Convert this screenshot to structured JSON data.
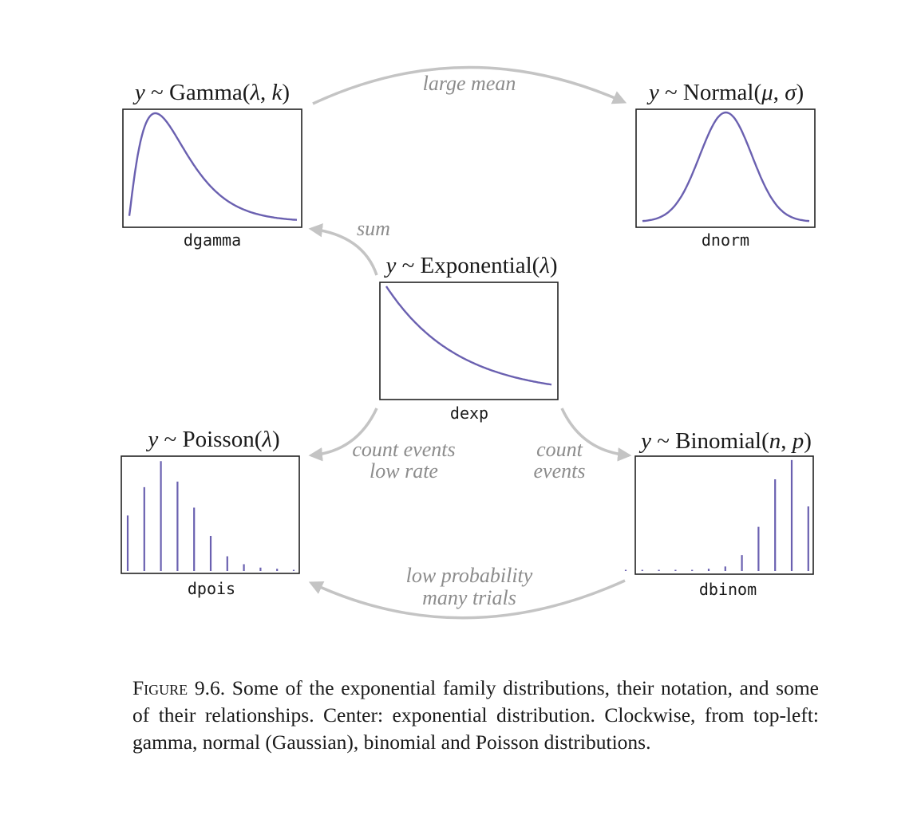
{
  "colors": {
    "curve": "#6a60b0",
    "arrow": "#c4c4c4",
    "edge_label": "#8c8c8c"
  },
  "nodes": {
    "gamma": {
      "title": [
        "y",
        " ~ Gamma(",
        "λ",
        ", ",
        "k",
        ")"
      ],
      "function": "dgamma"
    },
    "normal": {
      "title": [
        "y",
        " ~ Normal(",
        "μ",
        ", ",
        "σ",
        ")"
      ],
      "function": "dnorm"
    },
    "exponential": {
      "title": [
        "y",
        " ~ Exponential(",
        "λ",
        ")"
      ],
      "function": "dexp"
    },
    "poisson": {
      "title": [
        "y",
        " ~ Poisson(",
        "λ",
        ")"
      ],
      "function": "dpois",
      "bars": [
        0.49,
        0.74,
        0.97,
        0.79,
        0.56,
        0.31,
        0.13,
        0.06,
        0.03,
        0.02,
        0.01
      ]
    },
    "binomial": {
      "title": [
        "y",
        " ~ Binomial(",
        "n",
        ", ",
        "p",
        ")"
      ],
      "function": "dbinom",
      "bars": [
        0.0,
        0.0,
        0.0,
        0.0,
        0.0,
        0.02,
        0.04,
        0.14,
        0.39,
        0.81,
        0.98,
        0.57
      ]
    }
  },
  "edges": {
    "gamma_to_normal": [
      "large mean"
    ],
    "exponential_to_gamma": [
      "sum"
    ],
    "exponential_to_poisson": [
      "count events",
      "low rate"
    ],
    "exponential_to_binomial": [
      "count",
      "events"
    ],
    "binomial_to_poisson": [
      "low probability",
      "many trials"
    ]
  },
  "caption": {
    "label": "Figure 9.6.",
    "text": "Some of the exponential family distributions, their notation, and some of their relationships. Center: exponential distribution. Clockwise, from top-left: gamma, normal (Gaussian), binomial and Poisson distributions."
  }
}
